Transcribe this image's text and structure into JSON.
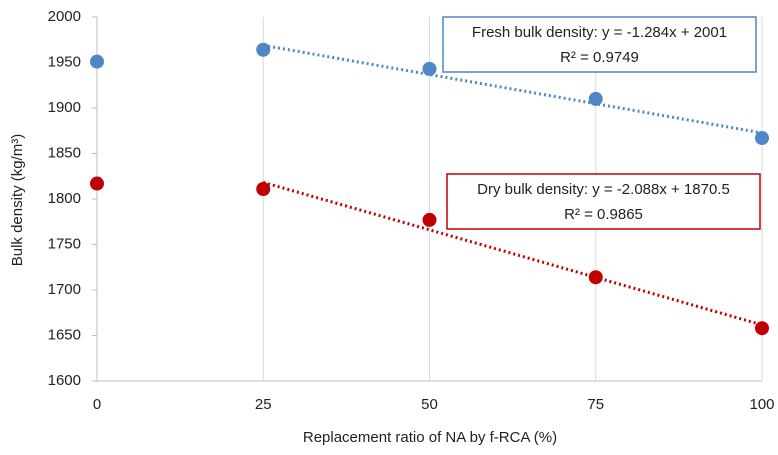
{
  "chart_data": {
    "type": "scatter",
    "x_label": "Replacement ratio of NA by f-RCA (%)",
    "y_label": "Bulk density (kg/m³)",
    "xlim": [
      0,
      100
    ],
    "xticks": [
      0,
      25,
      50,
      75,
      100
    ],
    "ylim": [
      1600,
      2000
    ],
    "yticks": [
      1600,
      1650,
      1700,
      1750,
      1800,
      1850,
      1900,
      1950,
      2000
    ],
    "grid": "x",
    "series": [
      {
        "color": "#4f86c6",
        "x": [
          0,
          25,
          50,
          75,
          100
        ],
        "values": [
          1951,
          1964,
          1943,
          1910,
          1867
        ],
        "trendline": {
          "x": [
            25,
            100
          ],
          "values": [
            1968.9,
            1872.6
          ]
        }
      },
      {
        "color": "#c00000",
        "x": [
          0,
          25,
          50,
          75,
          100
        ],
        "values": [
          1817,
          1811,
          1777,
          1714,
          1658
        ],
        "trendline": {
          "x": [
            25,
            100
          ],
          "values": [
            1818.3,
            1661.7
          ]
        }
      }
    ],
    "annotations": [
      {
        "lines": [
          "Fresh bulk density: y = -1.284x + 2001",
          "R² = 0.9749"
        ],
        "color": "#4f86c6"
      },
      {
        "lines": [
          "Dry bulk density: y = -2.088x + 1870.5",
          "R² = 0.9865"
        ],
        "color": "#c00000"
      }
    ]
  }
}
